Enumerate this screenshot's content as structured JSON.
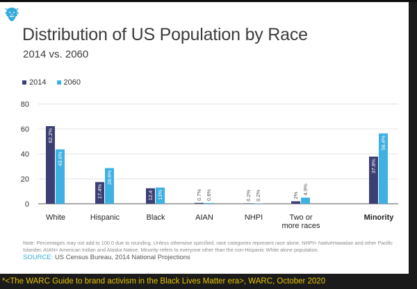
{
  "caption": "*<The WARC Guide to brand activism in the Black Lives Matter era>, WARC, October 2020",
  "logo": {
    "icon": "lion-logo-icon"
  },
  "colors": {
    "series_2014": "#3c3f73",
    "series_2060": "#3fb0e2",
    "grid": "#d9d9d9",
    "axis": "#555555"
  },
  "chart_data": {
    "type": "bar",
    "title": "Distribution of US Population by Race",
    "subtitle": "2014 vs. 2060",
    "categories": [
      "White",
      "Hispanic",
      "Black",
      "AIAN",
      "NHPI",
      "Two or more races",
      "Minority"
    ],
    "category_lines": [
      [
        "White"
      ],
      [
        "Hispanic"
      ],
      [
        "Black"
      ],
      [
        "AIAN"
      ],
      [
        "NHPI"
      ],
      [
        "Two or",
        "more races"
      ],
      [
        "Minority"
      ]
    ],
    "bold_categories": [
      "Minority"
    ],
    "series": [
      {
        "name": "2014",
        "values": [
          62.2,
          17.4,
          12.4,
          0.7,
          0.2,
          2,
          37.8
        ],
        "labels": [
          "62.2%",
          "17.4%",
          "12.4",
          "0.7%",
          "0.2%",
          "2%",
          "37.8%"
        ]
      },
      {
        "name": "2060",
        "values": [
          43.6,
          28.6,
          13,
          0.6,
          0.2,
          4.9,
          56.4
        ],
        "labels": [
          "43.6%",
          "28.6%",
          "13%",
          "0.6%",
          "0.2%",
          "4.9%",
          "56.4%"
        ]
      }
    ],
    "yticks": [
      0,
      20,
      40,
      60,
      80
    ],
    "ylim": [
      0,
      80
    ],
    "xlabel": "",
    "ylabel": "",
    "grid": true,
    "legend_position": "top-left"
  },
  "note": "Note: Percentages may not add to 100.0 due to rounding. Unless otherwise specified, race categories represent race alone. NHPI= NativeHawaiian and other Pacific Islander, AIAN= American Indian and Alaska Native. Minority refers to everyone other than the non-Hispanic White alone population.",
  "source": {
    "label": "SOURCE:",
    "text": "US Census Bureau, 2014 National Projections"
  }
}
